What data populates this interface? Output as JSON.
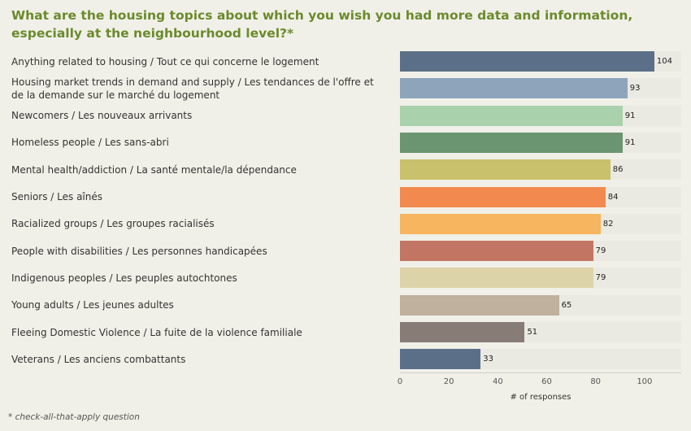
{
  "chart_data": {
    "type": "bar",
    "orientation": "horizontal",
    "title": "What are the housing topics about which you wish you had more data and information, especially at the neighbourhood level?*",
    "xlabel": "# of responses",
    "ylabel": "",
    "xlim": [
      0,
      115
    ],
    "xticks": [
      0,
      20,
      40,
      60,
      80,
      100
    ],
    "grid": false,
    "categories": [
      "Anything related to housing / Tout ce qui concerne le logement",
      "Housing market trends in demand and supply / Les tendances de l'offre et de la demande sur le marché du logement",
      "Newcomers / Les nouveaux arrivants",
      "Homeless people / Les sans-abri",
      "Mental health/addiction / La santé mentale/la dépendance",
      "Seniors / Les aînés",
      "Racialized groups / Les groupes racialisés",
      "People with disabilities / Les personnes handicapées",
      "Indigenous peoples / Les peuples autochtones",
      "Young adults / Les jeunes adultes",
      "Fleeing Domestic Violence / La fuite de la violence familiale",
      "Veterans / Les anciens combattants"
    ],
    "values": [
      104,
      93,
      91,
      91,
      86,
      84,
      82,
      79,
      79,
      65,
      51,
      33
    ],
    "colors": [
      "#5b7088",
      "#8da4bb",
      "#a9d1ab",
      "#6b9470",
      "#c9c16b",
      "#f28a4f",
      "#f7b55f",
      "#c37563",
      "#ddd3a8",
      "#c0b09e",
      "#877c76",
      "#5b7088"
    ]
  },
  "footnote": "* check-all-that-apply question"
}
